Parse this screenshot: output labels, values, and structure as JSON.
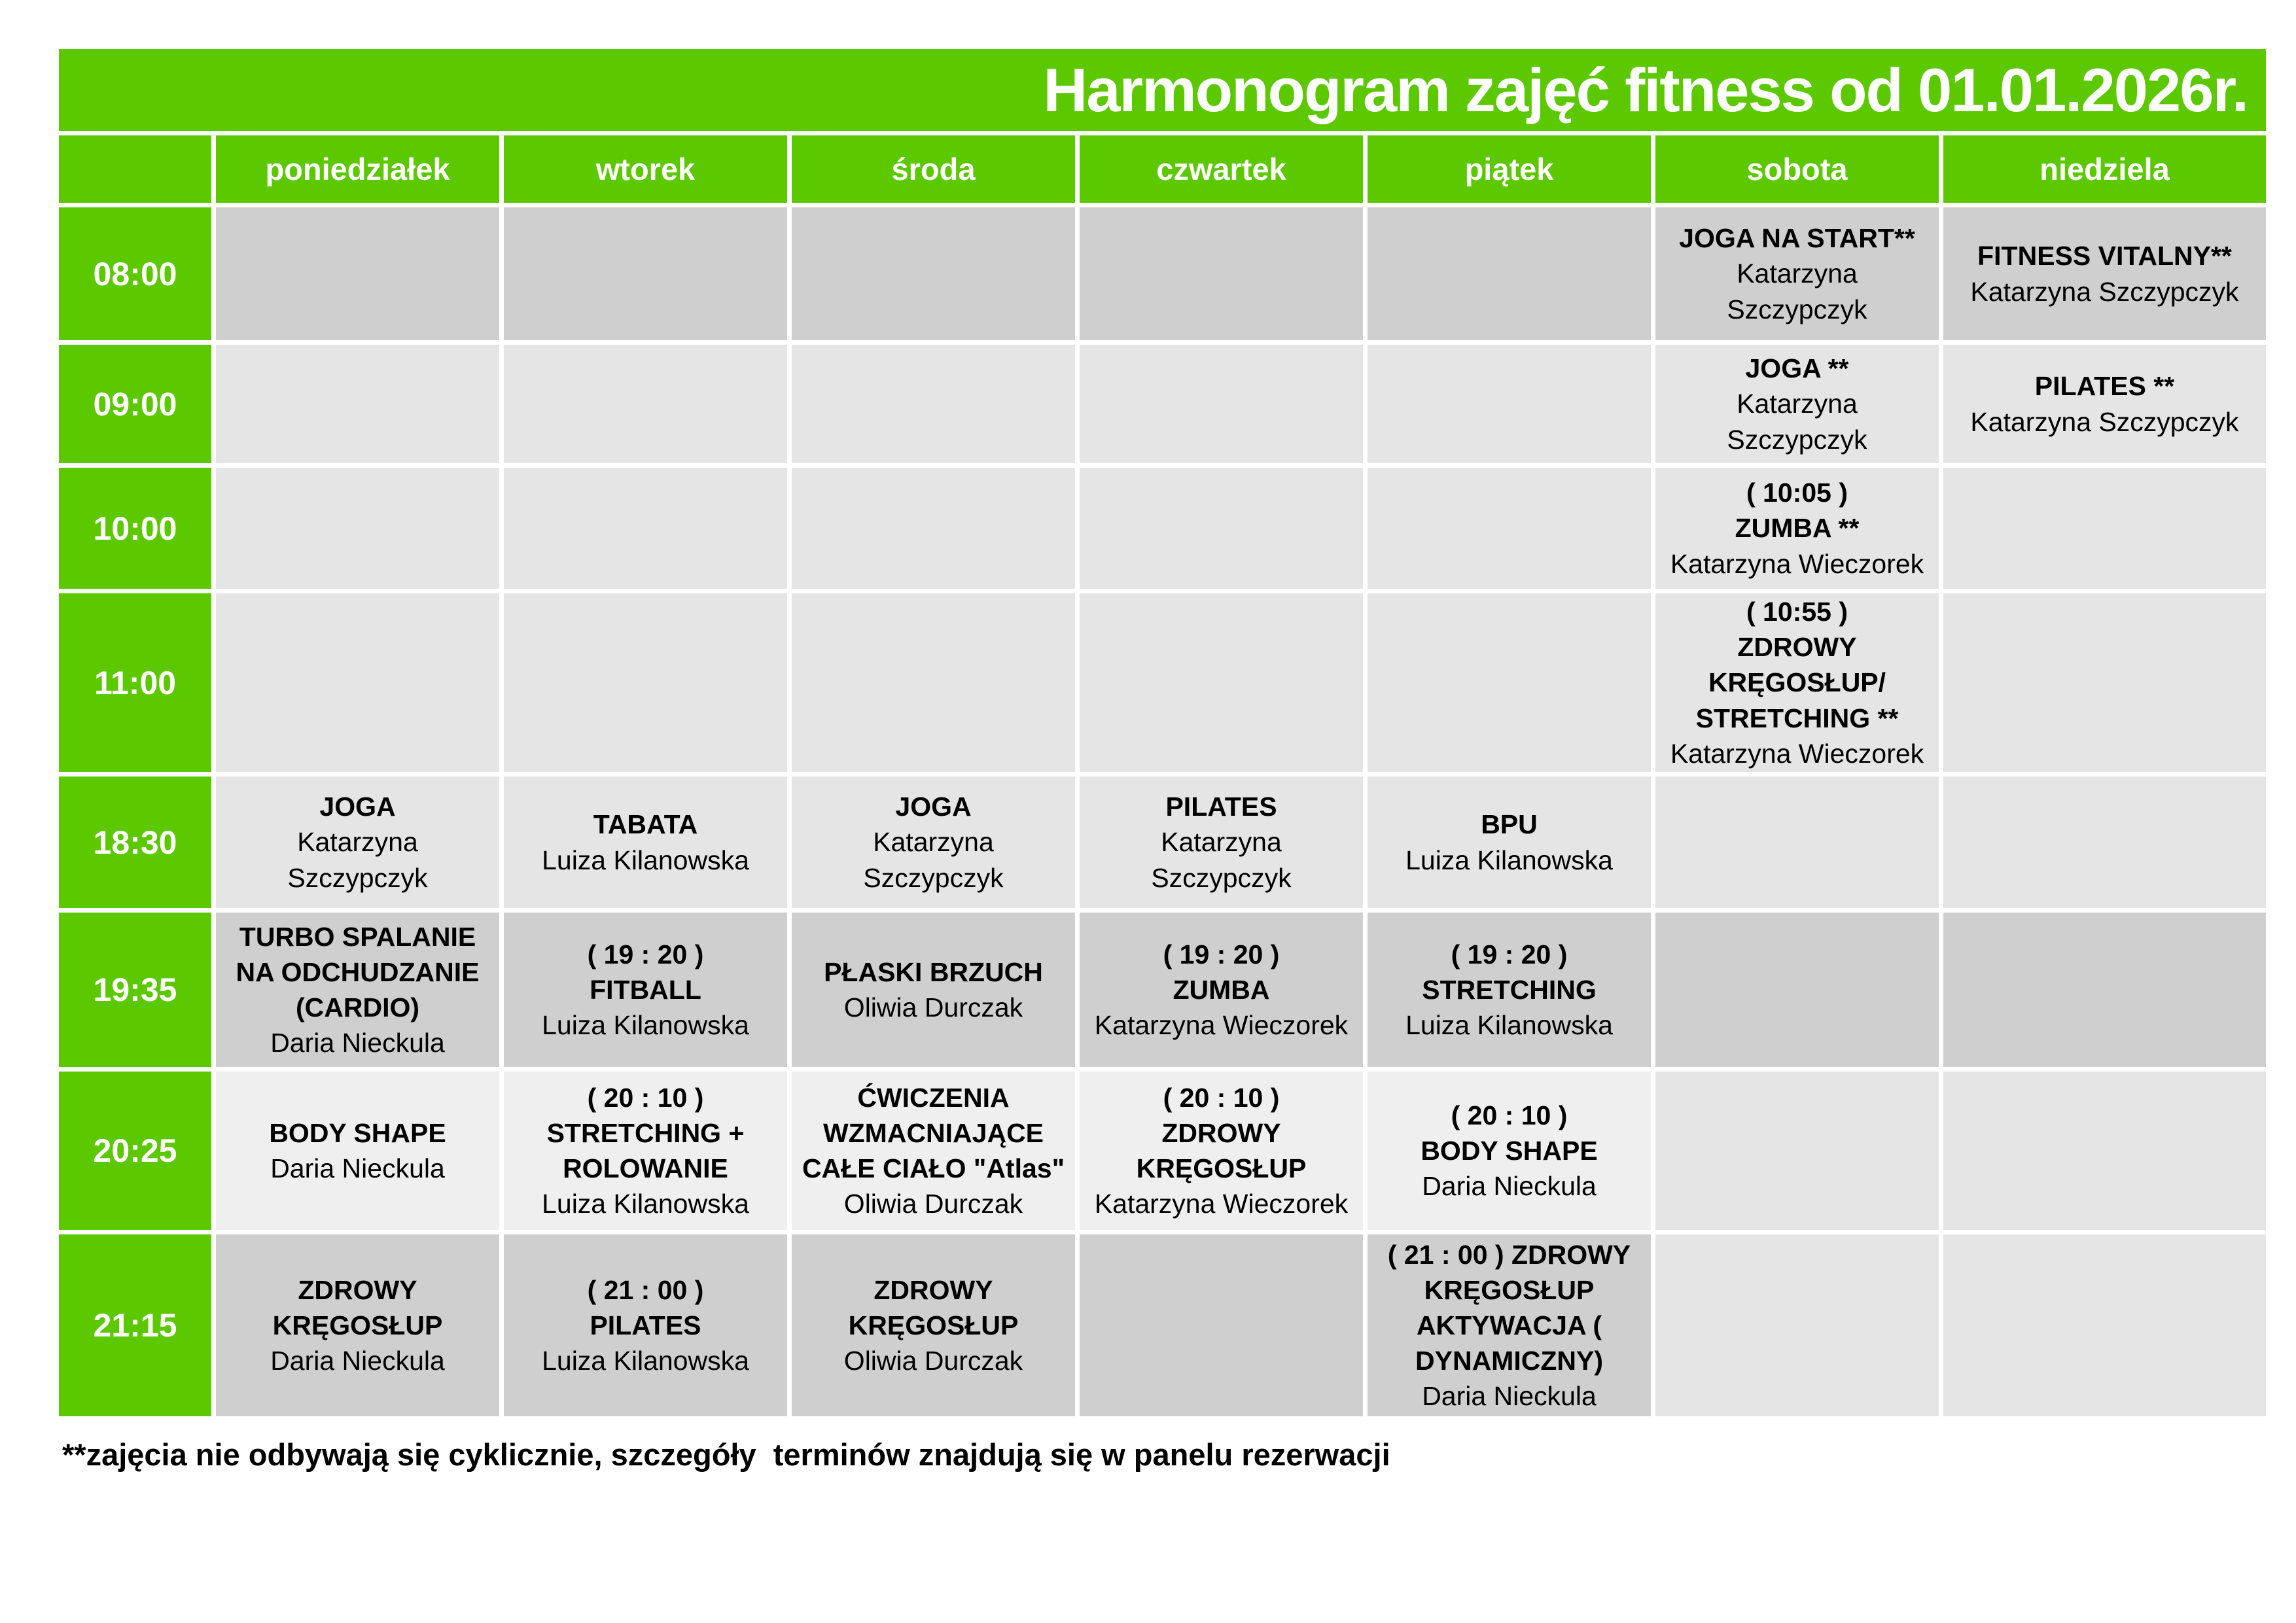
{
  "colors": {
    "green": "#5cc800",
    "cell_dark": "#cfcfcf",
    "cell_light": "#e5e5e5",
    "cell_lighter": "#efefef",
    "title_text": "#ffffff",
    "cell_text": "#000000"
  },
  "title": "Harmonogram zajęć fitness od 01.01.2026r.",
  "days": [
    "poniedziałek",
    "wtorek",
    "środa",
    "czwartek",
    "piątek",
    "sobota",
    "niedziela"
  ],
  "rows": [
    {
      "time": "08:00",
      "shade": "dark",
      "shade_weekend": "dark",
      "cells": [
        null,
        null,
        null,
        null,
        null,
        {
          "bold": "JOGA NA START**",
          "normal": "Katarzyna\nSzczypczyk"
        },
        {
          "bold": "FITNESS VITALNY**",
          "normal": "Katarzyna Szczypczyk"
        }
      ]
    },
    {
      "time": "09:00",
      "shade": "light",
      "shade_weekend": "light",
      "cells": [
        null,
        null,
        null,
        null,
        null,
        {
          "bold": "JOGA **",
          "normal": "Katarzyna\nSzczypczyk"
        },
        {
          "bold": "PILATES **",
          "normal": "Katarzyna Szczypczyk"
        }
      ]
    },
    {
      "time": "10:00",
      "shade": "light",
      "shade_weekend": "light",
      "cells": [
        null,
        null,
        null,
        null,
        null,
        {
          "bold": "( 10:05 )\nZUMBA **",
          "normal": "Katarzyna Wieczorek"
        },
        null
      ]
    },
    {
      "time": "11:00",
      "shade": "light",
      "shade_weekend": "light",
      "cells": [
        null,
        null,
        null,
        null,
        null,
        {
          "bold": "( 10:55 )\nZDROWY\nKRĘGOSŁUP/\nSTRETCHING **",
          "normal": "Katarzyna Wieczorek"
        },
        null
      ]
    },
    {
      "time": "18:30",
      "shade": "light",
      "shade_weekend": "light",
      "cells": [
        {
          "bold": "JOGA",
          "normal": "Katarzyna\nSzczypczyk"
        },
        {
          "bold": "TABATA",
          "normal": "Luiza Kilanowska"
        },
        {
          "bold": "JOGA",
          "normal": "Katarzyna\nSzczypczyk"
        },
        {
          "bold": "PILATES",
          "normal": "Katarzyna\nSzczypczyk"
        },
        {
          "bold": "BPU",
          "normal": "Luiza Kilanowska"
        },
        null,
        null
      ]
    },
    {
      "time": "19:35",
      "shade": "dark",
      "shade_weekend": "dark",
      "cells": [
        {
          "bold": "TURBO SPALANIE\nNA ODCHUDZANIE\n(CARDIO)",
          "normal": "Daria Nieckula"
        },
        {
          "bold": "( 19 : 20 )\nFITBALL",
          "normal": "Luiza Kilanowska"
        },
        {
          "bold": "PŁASKI BRZUCH",
          "normal": "Oliwia Durczak"
        },
        {
          "bold": "( 19 : 20 )\nZUMBA",
          "normal": "Katarzyna Wieczorek"
        },
        {
          "bold": "( 19 : 20 )\nSTRETCHING",
          "normal": "Luiza Kilanowska"
        },
        null,
        null
      ]
    },
    {
      "time": "20:25",
      "shade": "lighter",
      "shade_weekend": "light",
      "cells": [
        {
          "bold": "BODY SHAPE",
          "normal": "Daria Nieckula"
        },
        {
          "bold": "( 20 : 10 )\nSTRETCHING +\nROLOWANIE",
          "normal": "Luiza Kilanowska"
        },
        {
          "bold": "ĆWICZENIA\nWZMACNIAJĄCE\nCAŁE CIAŁO \"Atlas\"",
          "normal": "Oliwia Durczak"
        },
        {
          "bold": "( 20 : 10 )\nZDROWY\nKRĘGOSŁUP",
          "normal": "Katarzyna Wieczorek"
        },
        {
          "bold": "( 20 : 10 )\nBODY SHAPE",
          "normal": "Daria Nieckula"
        },
        null,
        null
      ]
    },
    {
      "time": "21:15",
      "shade": "dark",
      "shade_weekend": "light",
      "cells": [
        {
          "bold": "ZDROWY\nKRĘGOSŁUP",
          "normal": "Daria Nieckula"
        },
        {
          "bold": "( 21 : 00 )\nPILATES",
          "normal": "Luiza Kilanowska"
        },
        {
          "bold": "ZDROWY\nKRĘGOSŁUP",
          "normal": "Oliwia Durczak"
        },
        null,
        {
          "bold": "( 21 : 00 ) ZDROWY\nKRĘGOSŁUP\nAKTYWACJA (\nDYNAMICZNY)",
          "normal": "Daria Nieckula"
        },
        null,
        null
      ]
    }
  ],
  "footnote": "**zajęcia nie odbywają się cyklicznie, szczegóły  terminów znajdują się w panelu rezerwacji"
}
